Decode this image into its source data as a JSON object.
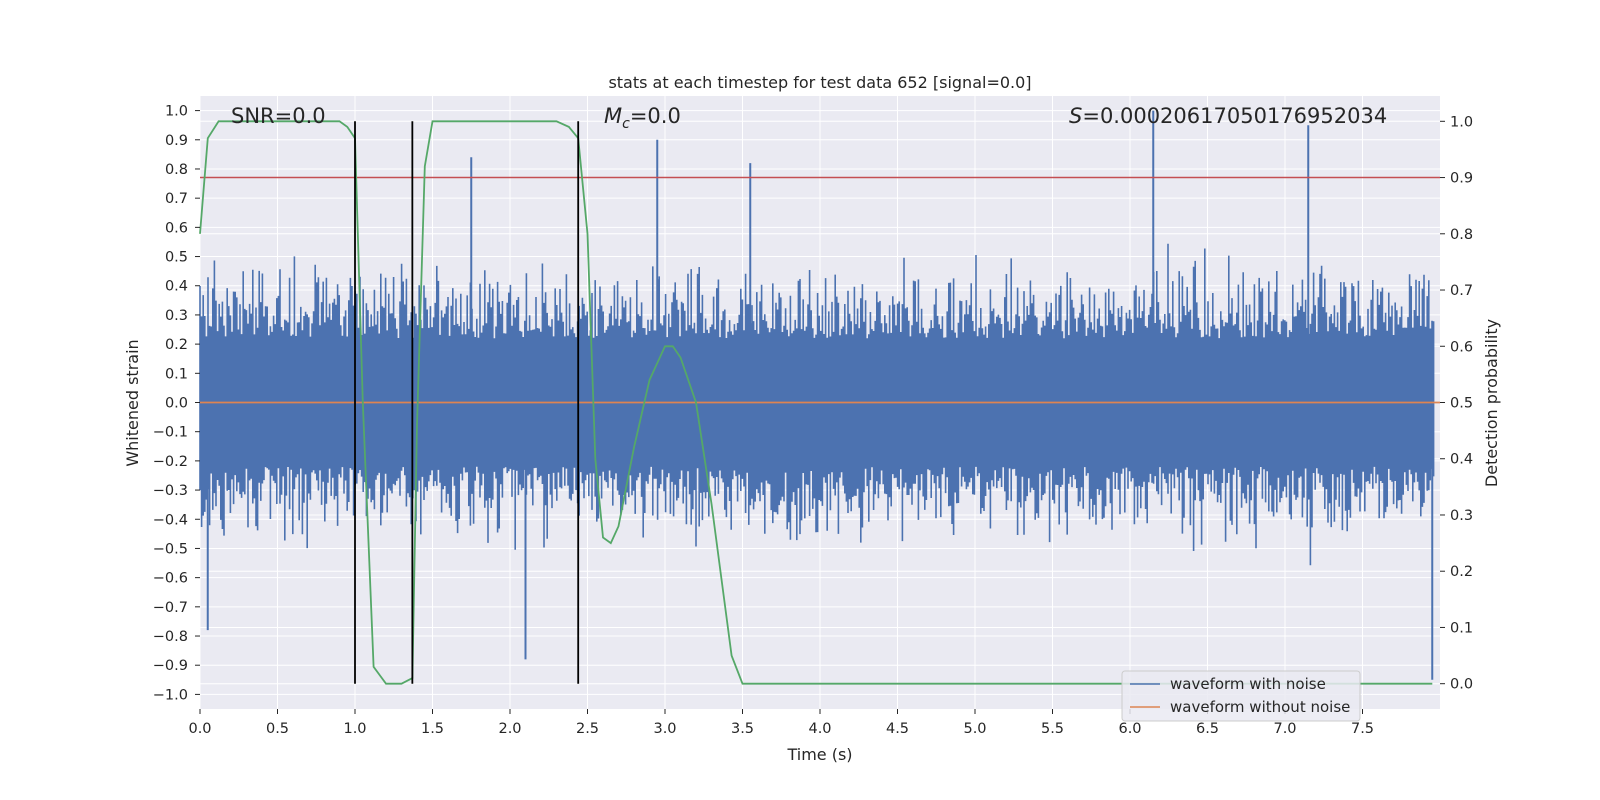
{
  "chart_data": {
    "type": "line",
    "title": "stats at each timestep for test data 652 [signal=0.0]",
    "xlabel": "Time (s)",
    "ylabel": "Whitened strain",
    "y2label": "Detection probability",
    "xlim": [
      0.0,
      8.0
    ],
    "ylim": [
      -1.05,
      1.05
    ],
    "y2lim": [
      -0.045,
      1.045
    ],
    "x_ticks": [
      "0.0",
      "0.5",
      "1.0",
      "1.5",
      "2.0",
      "2.5",
      "3.0",
      "3.5",
      "4.0",
      "4.5",
      "5.0",
      "5.5",
      "6.0",
      "6.5",
      "7.0",
      "7.5"
    ],
    "y_ticks": [
      "1.0",
      "0.9",
      "0.8",
      "0.7",
      "0.6",
      "0.5",
      "0.4",
      "0.3",
      "0.2",
      "0.1",
      "0.0",
      "-0.1",
      "-0.2",
      "-0.3",
      "-0.4",
      "-0.5",
      "-0.6",
      "-0.7",
      "-0.8",
      "-0.9",
      "-1.0"
    ],
    "y2_ticks": [
      "1.0",
      "0.9",
      "0.8",
      "0.7",
      "0.6",
      "0.5",
      "0.4",
      "0.3",
      "0.2",
      "0.1",
      "0.0"
    ],
    "grid": true,
    "legend_placement": "bottom-right",
    "annotations": {
      "snr": "SNR=0.0",
      "mc_symbol": "M",
      "mc_subscript": "c",
      "mc_value": "=0.0",
      "s_symbol": "S",
      "s_value": "=0.00020617050176952034"
    },
    "series": [
      {
        "name": "waveform with noise",
        "color": "#4c72b0",
        "axis": "left",
        "description_range": [
          -1.0,
          1.0
        ],
        "peaks": [
          [
            6.15,
            1.0
          ],
          [
            7.15,
            0.95
          ],
          [
            2.95,
            0.9
          ],
          [
            0.05,
            -0.78
          ],
          [
            2.1,
            -0.88
          ],
          [
            7.95,
            -0.95
          ],
          [
            3.55,
            0.82
          ],
          [
            1.75,
            0.84
          ]
        ]
      },
      {
        "name": "waveform without noise",
        "color": "#dd8452",
        "axis": "left",
        "x": [
          0.0,
          8.0
        ],
        "y": [
          0.0,
          0.0
        ]
      },
      {
        "color": "#55a868",
        "axis": "right",
        "x": [
          0.0,
          0.05,
          0.12,
          0.3,
          0.6,
          0.9,
          0.95,
          1.0,
          1.05,
          1.12,
          1.2,
          1.3,
          1.37,
          1.4,
          1.45,
          1.5,
          1.6,
          2.0,
          2.3,
          2.38,
          2.44,
          2.5,
          2.55,
          2.6,
          2.65,
          2.7,
          2.8,
          2.9,
          3.0,
          3.05,
          3.1,
          3.2,
          3.3,
          3.43,
          3.5,
          3.6,
          4.0,
          5.0,
          6.0,
          7.0,
          7.95
        ],
        "y": [
          0.8,
          0.97,
          1.0,
          1.0,
          1.0,
          1.0,
          0.99,
          0.97,
          0.5,
          0.03,
          0.0,
          0.0,
          0.01,
          0.46,
          0.92,
          1.0,
          1.0,
          1.0,
          1.0,
          0.99,
          0.97,
          0.8,
          0.4,
          0.26,
          0.25,
          0.28,
          0.42,
          0.54,
          0.6,
          0.6,
          0.58,
          0.5,
          0.32,
          0.05,
          0.0,
          0.0,
          0.0,
          0.0,
          0.0,
          0.0,
          0.0
        ]
      },
      {
        "color": "#c44e52",
        "axis": "right",
        "x": [
          0.0,
          8.0
        ],
        "y": [
          0.9,
          0.9
        ]
      }
    ],
    "vertical_markers": [
      1.0,
      1.37,
      2.44
    ],
    "vertical_marker_range": [
      0.0,
      1.0
    ]
  },
  "colors": {
    "plot_background": "#eaeaf2",
    "grid": "#ffffff",
    "noise": "#4c72b0",
    "clean": "#dd8452",
    "probability": "#55a868",
    "threshold": "#c44e52",
    "markers": "#000000"
  }
}
